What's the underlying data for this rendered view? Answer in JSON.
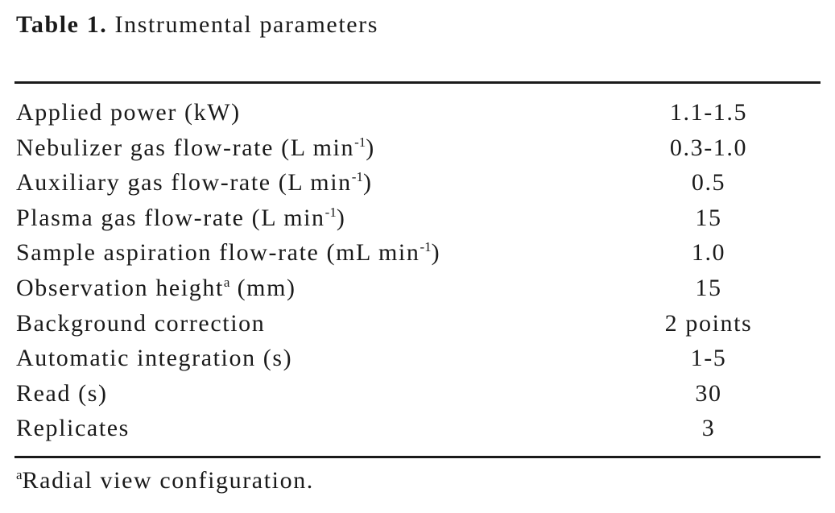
{
  "caption": {
    "label": "Table 1.",
    "text": "Instrumental parameters"
  },
  "table": {
    "rows": [
      {
        "parameter": [
          "Applied power (kW)"
        ],
        "value": "1.1-1.5"
      },
      {
        "parameter": [
          "Nebulizer gas flow-rate (L min",
          {
            "sup": "-1"
          },
          ")"
        ],
        "value": "0.3-1.0"
      },
      {
        "parameter": [
          "Auxiliary gas flow-rate (L min",
          {
            "sup": "-1"
          },
          ")"
        ],
        "value": "0.5"
      },
      {
        "parameter": [
          "Plasma gas flow-rate (L min",
          {
            "sup": "-1"
          },
          ")"
        ],
        "value": "15"
      },
      {
        "parameter": [
          "Sample aspiration flow-rate (mL min",
          {
            "sup": "-1"
          },
          ")"
        ],
        "value": "1.0"
      },
      {
        "parameter": [
          "Observation height",
          {
            "sup": "a"
          },
          " (mm)"
        ],
        "value": "15"
      },
      {
        "parameter": [
          "Background correction"
        ],
        "value": "2 points"
      },
      {
        "parameter": [
          "Automatic integration (s)"
        ],
        "value": "1-5"
      },
      {
        "parameter": [
          "Read (s)"
        ],
        "value": "30"
      },
      {
        "parameter": [
          "Replicates"
        ],
        "value": "3"
      }
    ]
  },
  "footnote": [
    {
      "sup": "a"
    },
    "Radial view configuration."
  ]
}
